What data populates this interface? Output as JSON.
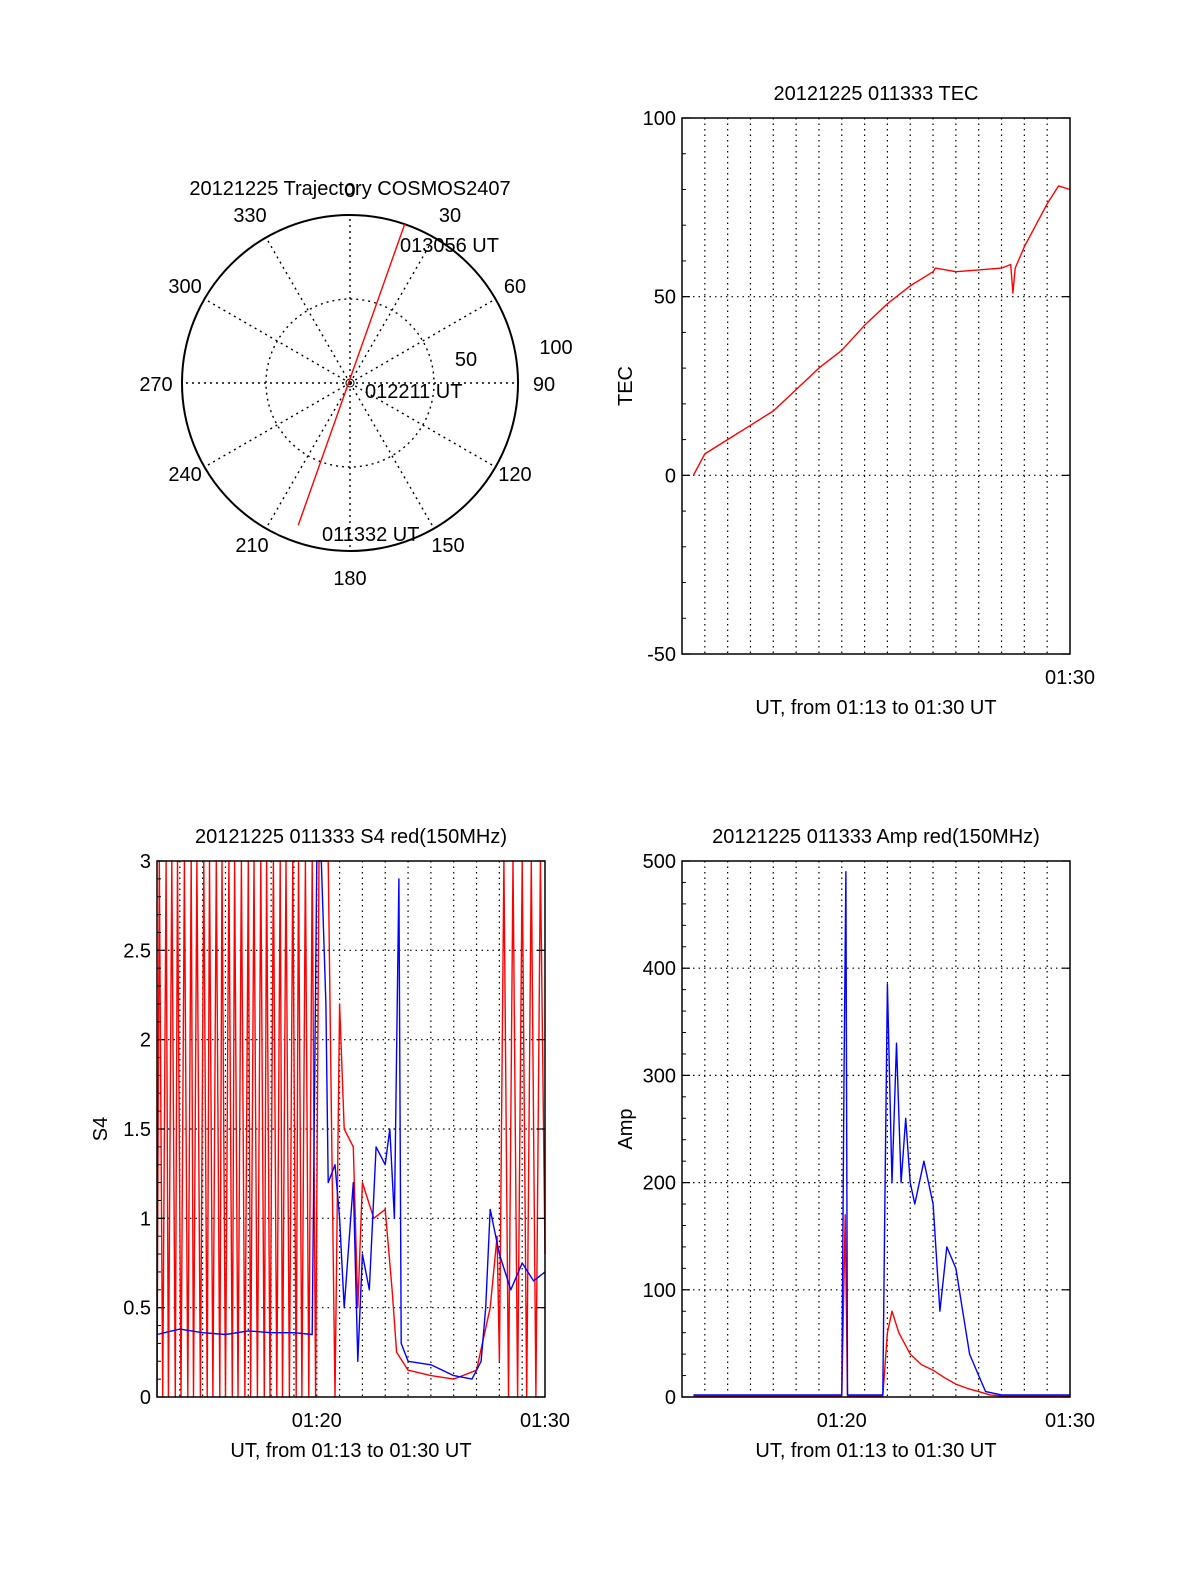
{
  "colors": {
    "red": "#ff0000",
    "blue": "#0000ff",
    "axis": "#000000",
    "grid": "#000000"
  },
  "chart_data": [
    {
      "type": "polar",
      "title": "20121225 Trajectory COSMOS2407",
      "azimuth_labels": [
        "0",
        "30",
        "60",
        "90",
        "120",
        "150",
        "180",
        "210",
        "240",
        "270",
        "300",
        "330"
      ],
      "radial_labels": [
        "50",
        "100"
      ],
      "radial_max": 100,
      "grid": true,
      "trajectory": {
        "start": [
          200,
          90
        ],
        "end": [
          19,
          100
        ]
      },
      "annotations": [
        "013056 UT",
        "012211 UT",
        "011332 UT"
      ]
    },
    {
      "type": "line",
      "title": "20121225 011333 TEC",
      "ylabel": "TEC",
      "xlabel": "UT, from 01:13 to 01:30 UT",
      "xlim": [
        13,
        30
      ],
      "ylim": [
        -50,
        100
      ],
      "yticks": [
        "-50",
        "0",
        "50",
        "100"
      ],
      "xtick_labels": [
        {
          "x": 30,
          "label": "01:30"
        }
      ],
      "grid": true,
      "series": [
        {
          "color": "#ff0000",
          "points": [
            [
              13.5,
              0
            ],
            [
              14,
              6
            ],
            [
              15,
              10
            ],
            [
              16,
              14
            ],
            [
              17,
              18
            ],
            [
              18,
              24
            ],
            [
              19,
              30
            ],
            [
              20,
              35
            ],
            [
              21,
              42
            ],
            [
              22,
              48
            ],
            [
              23,
              53
            ],
            [
              24,
              57
            ],
            [
              24.1,
              58
            ],
            [
              25,
              57
            ],
            [
              26,
              57.5
            ],
            [
              27,
              58
            ],
            [
              27.4,
              59
            ],
            [
              27.5,
              51
            ],
            [
              27.6,
              58
            ],
            [
              28,
              64
            ],
            [
              28.5,
              70
            ],
            [
              29,
              76
            ],
            [
              29.5,
              81
            ],
            [
              30,
              80
            ]
          ]
        }
      ]
    },
    {
      "type": "line",
      "title": "20121225 011333 S4 red(150MHz)",
      "ylabel": "S4",
      "xlabel": "UT, from 01:13 to 01:30 UT",
      "xlim": [
        13,
        30
      ],
      "ylim": [
        0,
        3
      ],
      "yticks": [
        "0",
        "0.5",
        "1",
        "1.5",
        "2",
        "2.5",
        "3"
      ],
      "xtick_labels": [
        {
          "x": 20,
          "label": "01:20"
        },
        {
          "x": 30,
          "label": "01:30"
        }
      ],
      "grid": true,
      "series": [
        {
          "color": "#ff0000",
          "points": [
            [
              13,
              0
            ],
            [
              13.1,
              3
            ],
            [
              13.25,
              0
            ],
            [
              13.4,
              3
            ],
            [
              13.5,
              0
            ],
            [
              13.65,
              3
            ],
            [
              13.8,
              0
            ],
            [
              13.9,
              3
            ],
            [
              14.05,
              0
            ],
            [
              14.2,
              3
            ],
            [
              14.35,
              0
            ],
            [
              14.5,
              3
            ],
            [
              14.6,
              0
            ],
            [
              14.75,
              3
            ],
            [
              14.9,
              0
            ],
            [
              15.05,
              3
            ],
            [
              15.2,
              0
            ],
            [
              15.3,
              3
            ],
            [
              15.45,
              0
            ],
            [
              15.6,
              3
            ],
            [
              15.75,
              0
            ],
            [
              15.85,
              3
            ],
            [
              16,
              0
            ],
            [
              16.15,
              3
            ],
            [
              16.3,
              0
            ],
            [
              16.4,
              3
            ],
            [
              16.55,
              0
            ],
            [
              16.7,
              3
            ],
            [
              16.85,
              0
            ],
            [
              17,
              3
            ],
            [
              17.1,
              0
            ],
            [
              17.25,
              3
            ],
            [
              17.4,
              0
            ],
            [
              17.55,
              3
            ],
            [
              17.7,
              0
            ],
            [
              17.8,
              3
            ],
            [
              17.95,
              0
            ],
            [
              18.1,
              3
            ],
            [
              18.25,
              0
            ],
            [
              18.4,
              3
            ],
            [
              18.5,
              0
            ],
            [
              18.65,
              3
            ],
            [
              18.8,
              0
            ],
            [
              18.95,
              3
            ],
            [
              19.1,
              0
            ],
            [
              19.2,
              3
            ],
            [
              19.35,
              0
            ],
            [
              19.5,
              3
            ],
            [
              19.65,
              0
            ],
            [
              19.8,
              3
            ],
            [
              19.95,
              0
            ],
            [
              20.1,
              3
            ],
            [
              20.5,
              3
            ],
            [
              20.8,
              0
            ],
            [
              21,
              2.2
            ],
            [
              21.2,
              1.5
            ],
            [
              21.6,
              1.4
            ],
            [
              21.8,
              0.5
            ],
            [
              22,
              1.2
            ],
            [
              22.5,
              1.0
            ],
            [
              23,
              1.05
            ],
            [
              23.3,
              0.6
            ],
            [
              23.5,
              0.25
            ],
            [
              24,
              0.15
            ],
            [
              25,
              0.12
            ],
            [
              26,
              0.1
            ],
            [
              27,
              0.15
            ],
            [
              27.6,
              0.5
            ],
            [
              27.9,
              0.9
            ],
            [
              28,
              0.2
            ],
            [
              28.2,
              3
            ],
            [
              28.4,
              0
            ],
            [
              28.6,
              3
            ],
            [
              28.8,
              0
            ],
            [
              29,
              3
            ],
            [
              29.2,
              0
            ],
            [
              29.4,
              3
            ],
            [
              29.6,
              0
            ],
            [
              29.8,
              3
            ],
            [
              30,
              0.8
            ]
          ]
        },
        {
          "color": "#0000ff",
          "points": [
            [
              13,
              0.35
            ],
            [
              14,
              0.38
            ],
            [
              15,
              0.36
            ],
            [
              16,
              0.35
            ],
            [
              17,
              0.37
            ],
            [
              18,
              0.36
            ],
            [
              19,
              0.36
            ],
            [
              19.8,
              0.35
            ],
            [
              20.0,
              3
            ],
            [
              20.2,
              3
            ],
            [
              20.4,
              2.2
            ],
            [
              20.5,
              1.2
            ],
            [
              20.8,
              1.3
            ],
            [
              21,
              1.0
            ],
            [
              21.2,
              0.5
            ],
            [
              21.6,
              1.2
            ],
            [
              21.8,
              0.2
            ],
            [
              22,
              0.8
            ],
            [
              22.3,
              0.6
            ],
            [
              22.6,
              1.4
            ],
            [
              23,
              1.3
            ],
            [
              23.2,
              1.5
            ],
            [
              23.4,
              1.0
            ],
            [
              23.6,
              2.9
            ],
            [
              23.7,
              0.3
            ],
            [
              24,
              0.2
            ],
            [
              25,
              0.18
            ],
            [
              26,
              0.12
            ],
            [
              26.8,
              0.1
            ],
            [
              27.2,
              0.2
            ],
            [
              27.4,
              0.5
            ],
            [
              27.6,
              1.05
            ],
            [
              28,
              0.8
            ],
            [
              28.5,
              0.6
            ],
            [
              29,
              0.75
            ],
            [
              29.5,
              0.65
            ],
            [
              30,
              0.7
            ]
          ]
        }
      ]
    },
    {
      "type": "line",
      "title": "20121225 011333 Amp red(150MHz)",
      "ylabel": "Amp",
      "xlabel": "UT, from 01:13 to 01:30 UT",
      "xlim": [
        13,
        30
      ],
      "ylim": [
        0,
        500
      ],
      "yticks": [
        "0",
        "100",
        "200",
        "300",
        "400",
        "500"
      ],
      "xtick_labels": [
        {
          "x": 20,
          "label": "01:20"
        },
        {
          "x": 30,
          "label": "01:30"
        }
      ],
      "grid": true,
      "series": [
        {
          "color": "#ff0000",
          "points": [
            [
              13.5,
              1
            ],
            [
              20.0,
              1
            ],
            [
              20.15,
              170
            ],
            [
              20.25,
              1
            ],
            [
              21.8,
              1
            ],
            [
              22,
              60
            ],
            [
              22.2,
              80
            ],
            [
              22.5,
              60
            ],
            [
              23,
              40
            ],
            [
              23.5,
              30
            ],
            [
              24,
              25
            ],
            [
              24.5,
              18
            ],
            [
              25,
              12
            ],
            [
              25.5,
              8
            ],
            [
              26,
              5
            ],
            [
              26.5,
              2
            ],
            [
              27,
              1
            ],
            [
              30,
              1
            ]
          ]
        },
        {
          "color": "#0000ff",
          "points": [
            [
              13.5,
              2
            ],
            [
              20.0,
              2
            ],
            [
              20.1,
              300
            ],
            [
              20.18,
              490
            ],
            [
              20.25,
              2
            ],
            [
              21.8,
              2
            ],
            [
              21.9,
              200
            ],
            [
              22.0,
              385
            ],
            [
              22.2,
              200
            ],
            [
              22.4,
              330
            ],
            [
              22.6,
              200
            ],
            [
              22.8,
              260
            ],
            [
              23,
              200
            ],
            [
              23.2,
              180
            ],
            [
              23.6,
              220
            ],
            [
              24,
              180
            ],
            [
              24.3,
              80
            ],
            [
              24.6,
              140
            ],
            [
              25,
              120
            ],
            [
              25.3,
              80
            ],
            [
              25.6,
              40
            ],
            [
              26,
              20
            ],
            [
              26.3,
              5
            ],
            [
              27,
              2
            ],
            [
              30,
              2
            ]
          ]
        }
      ]
    }
  ]
}
